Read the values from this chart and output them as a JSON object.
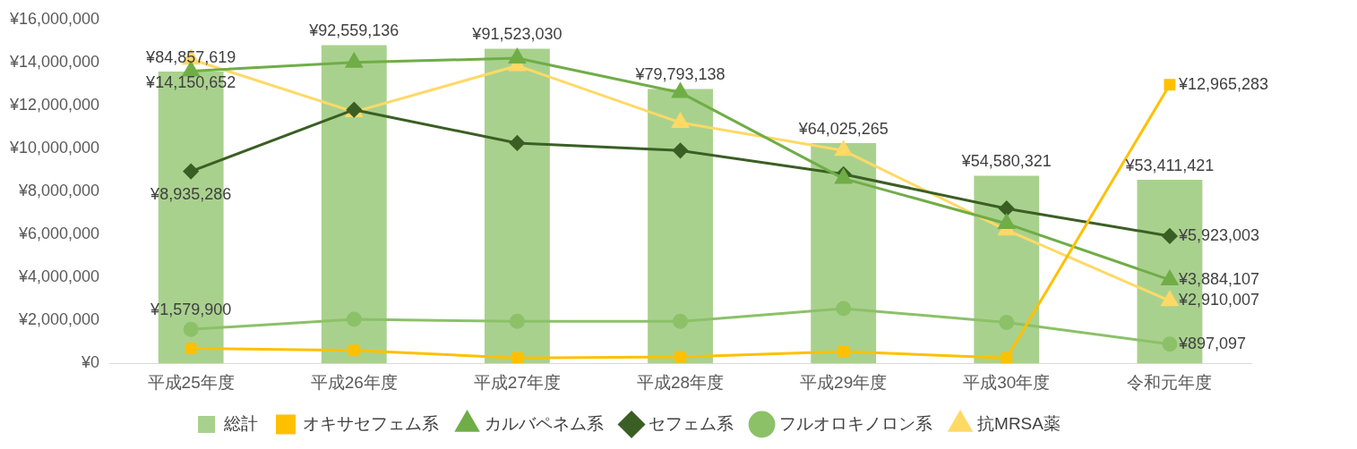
{
  "chart_data": {
    "type": "bar",
    "categories": [
      "平成25年度",
      "平成26年度",
      "平成27年度",
      "平成28年度",
      "平成29年度",
      "平成30年度",
      "令和元年度"
    ],
    "ylim": [
      0,
      16000000
    ],
    "yticks": [
      {
        "value": 0,
        "label": "¥0"
      },
      {
        "value": 2000000,
        "label": "¥2,000,000"
      },
      {
        "value": 4000000,
        "label": "¥4,000,000"
      },
      {
        "value": 6000000,
        "label": "¥6,000,000"
      },
      {
        "value": 8000000,
        "label": "¥8,000,000"
      },
      {
        "value": 10000000,
        "label": "¥10,000,000"
      },
      {
        "value": 12000000,
        "label": "¥12,000,000"
      },
      {
        "value": 14000000,
        "label": "¥14,000,000"
      },
      {
        "value": 16000000,
        "label": "¥16,000,000"
      }
    ],
    "grid": false,
    "legend": "bottom",
    "series": [
      {
        "name": "総計",
        "axis": "y2",
        "color": "#a9d18e",
        "values": [
          84857619,
          92559136,
          91523030,
          79793138,
          64025265,
          54580321,
          53411421
        ],
        "value_labels": [
          "¥84,857,619",
          "¥92,559,136",
          "¥91,523,030",
          "¥79,793,138",
          "¥64,025,265",
          "¥54,580,321",
          "¥53,411,421"
        ]
      },
      {
        "name": "オキサセフェム系",
        "type": "line",
        "color": "#ffc000",
        "marker": "square",
        "values": [
          700000,
          600000,
          250000,
          300000,
          550000,
          250000,
          12965283
        ],
        "value_labels": [
          null,
          null,
          null,
          null,
          null,
          null,
          "¥12,965,283"
        ]
      },
      {
        "name": "カルバペネム系",
        "type": "line",
        "color": "#70ad47",
        "marker": "triangle",
        "values": [
          13600000,
          14000000,
          14200000,
          12600000,
          8600000,
          6500000,
          3884107
        ],
        "value_labels": [
          null,
          null,
          null,
          null,
          null,
          null,
          "¥3,884,107"
        ]
      },
      {
        "name": "セフェム系",
        "type": "line",
        "color": "#3a5f24",
        "marker": "diamond",
        "values": [
          8935286,
          11800000,
          10250000,
          9900000,
          8800000,
          7200000,
          5923003
        ],
        "value_labels": [
          "¥8,935,286",
          null,
          null,
          null,
          null,
          null,
          "¥5,923,003"
        ]
      },
      {
        "name": "フルオロキノロン系",
        "type": "line",
        "color": "#8cc168",
        "marker": "circle",
        "values": [
          1579900,
          2050000,
          1950000,
          1950000,
          2550000,
          1900000,
          897097
        ],
        "value_labels": [
          "¥1,579,900",
          null,
          null,
          null,
          null,
          null,
          "¥897,097"
        ]
      },
      {
        "name": "抗MRSA薬",
        "type": "line",
        "color": "#ffd966",
        "marker": "triangle",
        "values": [
          14150652,
          11700000,
          13850000,
          11200000,
          9900000,
          6200000,
          2910007
        ],
        "value_labels": [
          "¥14,150,652",
          null,
          null,
          null,
          null,
          null,
          "¥2,910,007"
        ]
      }
    ]
  }
}
